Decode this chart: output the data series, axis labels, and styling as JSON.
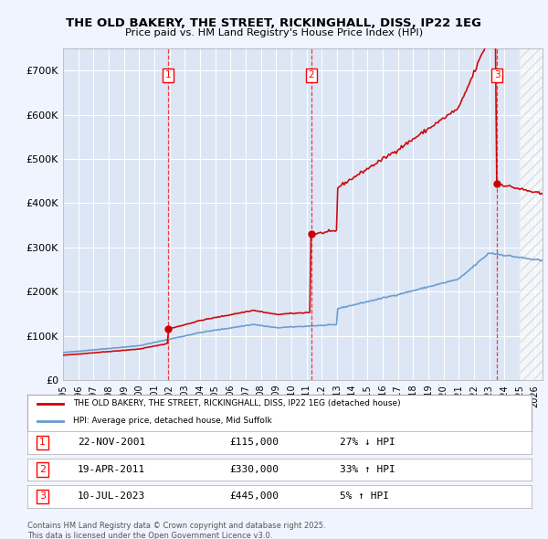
{
  "title": "THE OLD BAKERY, THE STREET, RICKINGHALL, DISS, IP22 1EG",
  "subtitle": "Price paid vs. HM Land Registry's House Price Index (HPI)",
  "ylim": [
    0,
    750000
  ],
  "yticks": [
    0,
    100000,
    200000,
    300000,
    400000,
    500000,
    600000,
    700000
  ],
  "ytick_labels": [
    "£0",
    "£100K",
    "£200K",
    "£300K",
    "£400K",
    "£500K",
    "£600K",
    "£700K"
  ],
  "x_start_year": 1995,
  "x_end_year": 2026,
  "background_color": "#f0f4ff",
  "plot_bg_color": "#dce6f5",
  "grid_color": "#ffffff",
  "red_line_color": "#cc0000",
  "blue_line_color": "#6699cc",
  "sale_dates": [
    2001.9,
    2011.3,
    2023.52
  ],
  "sale_labels": [
    "1",
    "2",
    "3"
  ],
  "sale_prices": [
    115000,
    330000,
    445000
  ],
  "current_year": 2025.0,
  "legend_red_label": "THE OLD BAKERY, THE STREET, RICKINGHALL, DISS, IP22 1EG (detached house)",
  "legend_blue_label": "HPI: Average price, detached house, Mid Suffolk",
  "table_rows": [
    {
      "num": "1",
      "date": "22-NOV-2001",
      "price": "£115,000",
      "change": "27% ↓ HPI"
    },
    {
      "num": "2",
      "date": "19-APR-2011",
      "price": "£330,000",
      "change": "33% ↑ HPI"
    },
    {
      "num": "3",
      "date": "10-JUL-2023",
      "price": "£445,000",
      "change": "5% ↑ HPI"
    }
  ],
  "footnote": "Contains HM Land Registry data © Crown copyright and database right 2025.\nThis data is licensed under the Open Government Licence v3.0."
}
